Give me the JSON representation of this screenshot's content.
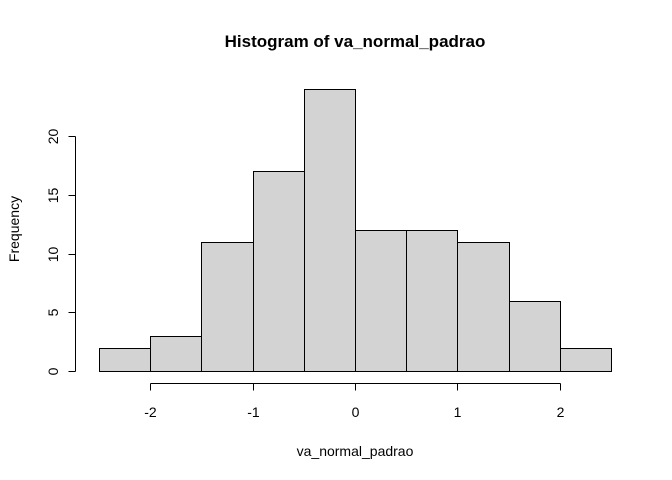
{
  "chart_data": {
    "type": "bar",
    "title": "Histogram of va_normal_padrao",
    "xlabel": "va_normal_padrao",
    "ylabel": "Frequency",
    "bin_edges": [
      -2.5,
      -2.0,
      -1.5,
      -1.0,
      -0.5,
      0.0,
      0.5,
      1.0,
      1.5,
      2.0,
      2.5
    ],
    "values": [
      2,
      3,
      11,
      17,
      24,
      12,
      12,
      11,
      6,
      2
    ],
    "xlim": [
      -2.5,
      2.5
    ],
    "ylim": [
      0,
      24
    ],
    "x_ticks": [
      -2,
      -1,
      0,
      1,
      2
    ],
    "x_tick_labels": [
      "-2",
      "-1",
      "0",
      "1",
      "2"
    ],
    "y_ticks": [
      0,
      5,
      10,
      15,
      20
    ],
    "y_tick_labels": [
      "0",
      "5",
      "10",
      "15",
      "20"
    ],
    "bar_color": "#d3d3d3",
    "grid": false
  }
}
